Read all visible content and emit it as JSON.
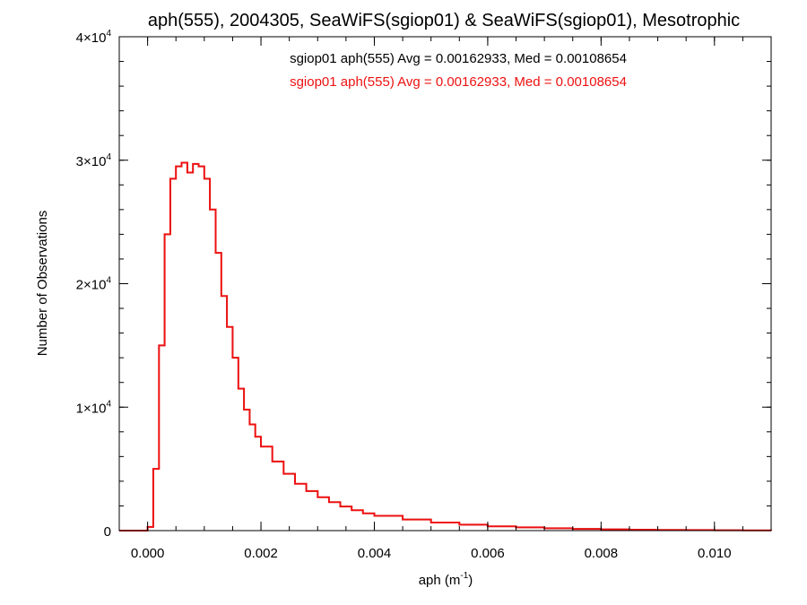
{
  "chart_data": {
    "type": "line",
    "title": "aph(555), 2004305, SeaWiFS(sgiop01) & SeaWiFS(sgiop01), Mesotrophic",
    "xlabel": "aph (m",
    "xlabel_sup": "-1",
    "xlabel_end": ")",
    "ylabel": "Number of Observations",
    "xlim": [
      -0.0005,
      0.011
    ],
    "ylim": [
      0,
      40000
    ],
    "x_ticks": [
      {
        "value": 0.0,
        "label": "0.000"
      },
      {
        "value": 0.002,
        "label": "0.002"
      },
      {
        "value": 0.004,
        "label": "0.004"
      },
      {
        "value": 0.006,
        "label": "0.006"
      },
      {
        "value": 0.008,
        "label": "0.008"
      },
      {
        "value": 0.01,
        "label": "0.010"
      }
    ],
    "y_ticks": [
      {
        "value": 0,
        "base": "0",
        "exp": ""
      },
      {
        "value": 10000,
        "base": "1×10",
        "exp": "4"
      },
      {
        "value": 20000,
        "base": "2×10",
        "exp": "4"
      },
      {
        "value": 30000,
        "base": "3×10",
        "exp": "4"
      },
      {
        "value": 40000,
        "base": "4×10",
        "exp": "4"
      }
    ],
    "grid": false,
    "legend_placement": "top-center",
    "series": [
      {
        "name": "sgiop01 aph(555) Avg = 0.00162933, Med = 0.00108654",
        "color": "#000000",
        "x": [
          -0.0005,
          0.0,
          0.0001,
          0.0002,
          0.0003,
          0.0004,
          0.0005,
          0.0006,
          0.0007,
          0.0008,
          0.0009,
          0.001,
          0.0011,
          0.0012,
          0.0013,
          0.0014,
          0.0015,
          0.0016,
          0.0017,
          0.0018,
          0.0019,
          0.002,
          0.0022,
          0.0024,
          0.0026,
          0.0028,
          0.003,
          0.0032,
          0.0034,
          0.0036,
          0.0038,
          0.004,
          0.0045,
          0.005,
          0.0055,
          0.006,
          0.0065,
          0.007,
          0.0075,
          0.008,
          0.0085,
          0.009,
          0.0095,
          0.01,
          0.0105,
          0.011
        ],
        "y": [
          0,
          300,
          5000,
          15000,
          24000,
          28500,
          29500,
          29800,
          29000,
          29700,
          29500,
          28500,
          26000,
          22500,
          19000,
          16500,
          14000,
          11500,
          9800,
          8600,
          7600,
          6800,
          5600,
          4600,
          3800,
          3200,
          2700,
          2300,
          1950,
          1650,
          1400,
          1200,
          900,
          650,
          480,
          350,
          260,
          190,
          140,
          100,
          75,
          55,
          40,
          28,
          18,
          10
        ]
      },
      {
        "name": "sgiop01 aph(555) Avg = 0.00162933, Med = 0.00108654",
        "color": "#ee1111",
        "x": [
          -0.0005,
          0.0,
          0.0001,
          0.0002,
          0.0003,
          0.0004,
          0.0005,
          0.0006,
          0.0007,
          0.0008,
          0.0009,
          0.001,
          0.0011,
          0.0012,
          0.0013,
          0.0014,
          0.0015,
          0.0016,
          0.0017,
          0.0018,
          0.0019,
          0.002,
          0.0022,
          0.0024,
          0.0026,
          0.0028,
          0.003,
          0.0032,
          0.0034,
          0.0036,
          0.0038,
          0.004,
          0.0045,
          0.005,
          0.0055,
          0.006,
          0.0065,
          0.007,
          0.0075,
          0.008,
          0.0085,
          0.009,
          0.0095,
          0.01,
          0.0105,
          0.011
        ],
        "y": [
          0,
          300,
          5000,
          15000,
          24000,
          28500,
          29500,
          29800,
          29000,
          29700,
          29500,
          28500,
          26000,
          22500,
          19000,
          16500,
          14000,
          11500,
          9800,
          8600,
          7600,
          6800,
          5600,
          4600,
          3800,
          3200,
          2700,
          2300,
          1950,
          1650,
          1400,
          1200,
          900,
          650,
          480,
          350,
          260,
          190,
          140,
          100,
          75,
          55,
          40,
          28,
          18,
          10
        ]
      }
    ]
  }
}
